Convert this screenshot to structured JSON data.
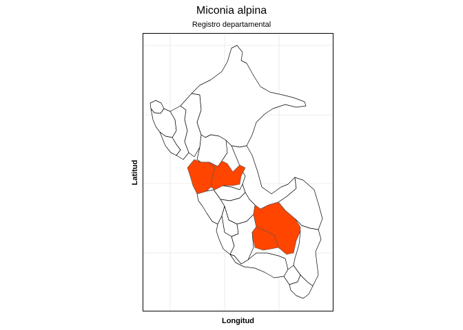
{
  "title": "Miconia alpina",
  "subtitle": "Registro departamental",
  "xlabel": "Longitud",
  "ylabel": "Latitud",
  "highlight_color": "#ff4500",
  "map": {
    "type": "choropleth",
    "region": "Peru",
    "highlighted_departments": 4,
    "grid": true
  }
}
